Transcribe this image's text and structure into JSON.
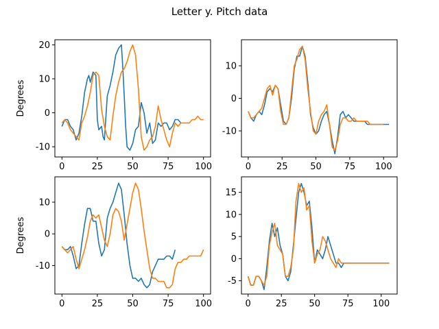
{
  "figure": {
    "title": "Letter y. Pitch data",
    "colors": {
      "series1": "#1f77b4",
      "series2": "#ff7f0e",
      "frame": "#000000",
      "background": "#ffffff"
    }
  },
  "chart_data": [
    {
      "type": "line",
      "ylabel": "Degrees",
      "xlim": [
        -5,
        105
      ],
      "ylim": [
        -13,
        21.5
      ],
      "xticks": [
        0,
        25,
        50,
        75,
        100
      ],
      "yticks": [
        -10,
        0,
        10,
        20
      ],
      "grid": false,
      "series": [
        {
          "x": [
            0,
            2,
            4,
            6,
            8,
            10,
            12,
            14,
            16,
            18,
            19,
            20,
            22,
            24,
            25,
            26,
            28,
            29,
            30,
            32,
            34,
            36,
            38,
            40,
            42,
            43,
            44,
            45,
            46,
            48,
            50,
            52,
            54,
            56,
            58,
            60,
            62,
            64,
            66,
            68,
            70,
            72,
            74,
            76,
            78,
            80,
            82,
            84
          ],
          "y": [
            -4,
            -2,
            -2,
            -4,
            -5,
            -8,
            -6,
            -1,
            6,
            10,
            11,
            9,
            12,
            11,
            -2,
            -5,
            -4,
            -7,
            -8,
            5,
            8,
            12,
            17,
            19,
            20,
            13,
            5,
            -4,
            -10,
            -11,
            -9,
            -5,
            -4,
            3,
            0,
            -6,
            -3,
            -9,
            -8,
            -3,
            -4,
            -3,
            -3,
            -5,
            -4,
            -2,
            -2,
            -3
          ]
        },
        {
          "x": [
            0,
            2,
            4,
            6,
            8,
            10,
            12,
            14,
            16,
            18,
            20,
            22,
            24,
            26,
            28,
            30,
            32,
            34,
            36,
            38,
            40,
            42,
            44,
            46,
            48,
            50,
            52,
            54,
            56,
            58,
            60,
            62,
            64,
            66,
            68,
            70,
            72,
            74,
            76,
            78,
            80,
            82,
            84,
            86,
            88,
            90,
            92,
            94,
            96,
            98,
            100
          ],
          "y": [
            -3,
            -2,
            -3,
            -5,
            -6,
            -7,
            -8,
            -3,
            -1,
            2,
            6,
            11,
            12,
            11,
            1,
            -4,
            -7,
            -8,
            -1,
            5,
            9,
            12,
            13,
            15,
            18,
            20,
            17,
            7,
            -7,
            -11,
            -10,
            -8,
            -7,
            -4,
            2,
            -2,
            -5,
            -8,
            -10,
            -6,
            -3,
            -4,
            -3,
            -3,
            -3,
            -3,
            -2,
            -2,
            -1,
            -2,
            -2
          ]
        }
      ]
    },
    {
      "type": "line",
      "xlim": [
        -5,
        110
      ],
      "ylim": [
        -18,
        18
      ],
      "xticks": [
        0,
        25,
        50,
        75,
        100
      ],
      "yticks": [
        -10,
        0,
        10
      ],
      "grid": false,
      "series": [
        {
          "x": [
            0,
            2,
            4,
            6,
            8,
            10,
            12,
            14,
            16,
            18,
            20,
            22,
            24,
            26,
            28,
            30,
            32,
            34,
            36,
            38,
            40,
            42,
            44,
            46,
            48,
            50,
            52,
            54,
            56,
            58,
            60,
            62,
            64,
            66,
            68,
            70,
            72,
            74,
            76,
            78,
            80,
            82,
            84,
            86,
            88,
            90,
            92,
            94,
            96,
            98,
            100,
            102,
            104
          ],
          "y": [
            -4,
            -6,
            -7,
            -5,
            -4,
            -5,
            -2,
            2,
            3,
            2,
            4,
            3,
            -2,
            -7,
            -8,
            -6,
            0,
            9,
            13,
            13,
            16,
            13,
            5,
            -5,
            -9,
            -11,
            -10,
            -7,
            -5,
            -4,
            -8,
            -13,
            -17,
            -12,
            -5,
            -4,
            -6,
            -5,
            -6,
            -7,
            -7,
            -7,
            -7,
            -7,
            -8,
            -8,
            -8,
            -8,
            -8,
            -8,
            -8,
            -8,
            -8
          ]
        },
        {
          "x": [
            0,
            2,
            4,
            6,
            8,
            10,
            12,
            14,
            16,
            18,
            20,
            22,
            24,
            26,
            28,
            30,
            32,
            34,
            36,
            38,
            40,
            42,
            44,
            46,
            48,
            50,
            52,
            54,
            56,
            58,
            60,
            62,
            64,
            66,
            68,
            70,
            72,
            74,
            76,
            78,
            80,
            82,
            84,
            86,
            88,
            90,
            92,
            94,
            96,
            98,
            100
          ],
          "y": [
            -4,
            -6,
            -6,
            -5,
            -4,
            -3,
            0,
            3,
            4,
            1,
            4,
            3,
            -4,
            -8,
            -8,
            -6,
            2,
            10,
            12,
            15,
            16,
            12,
            3,
            -4,
            -10,
            -11,
            -7,
            -5,
            -4,
            -2,
            -8,
            -15,
            -16,
            -13,
            -8,
            -6,
            -6,
            -7,
            -7,
            -6,
            -7,
            -7,
            -7,
            -7,
            -7,
            -8,
            -8,
            -8,
            -8,
            -8,
            -8
          ]
        }
      ]
    },
    {
      "type": "line",
      "ylabel": "Degrees",
      "xlim": [
        -5,
        105
      ],
      "ylim": [
        -19,
        18
      ],
      "xticks": [
        0,
        25,
        50,
        75,
        100
      ],
      "yticks": [
        -10,
        0,
        10
      ],
      "grid": false,
      "series": [
        {
          "x": [
            0,
            2,
            4,
            6,
            8,
            10,
            12,
            14,
            16,
            18,
            20,
            22,
            24,
            26,
            28,
            30,
            32,
            34,
            36,
            38,
            40,
            42,
            44,
            46,
            48,
            50,
            52,
            54,
            56,
            58,
            60,
            62,
            64,
            66,
            68,
            70,
            72,
            74,
            76,
            78,
            80
          ],
          "y": [
            -4,
            -5,
            -5,
            -4,
            -7,
            -11,
            -10,
            -3,
            3,
            8,
            8,
            4,
            4,
            -3,
            -7,
            -5,
            5,
            8,
            10,
            13,
            16,
            14,
            6,
            -3,
            -10,
            -14,
            -14,
            -15,
            -14,
            -16,
            -17,
            -16,
            -12,
            -10,
            -8,
            -8,
            -8,
            -7,
            -7,
            -8,
            -5
          ]
        },
        {
          "x": [
            0,
            2,
            4,
            6,
            8,
            10,
            12,
            14,
            16,
            18,
            20,
            22,
            24,
            26,
            28,
            30,
            32,
            34,
            36,
            38,
            40,
            42,
            44,
            46,
            48,
            50,
            52,
            54,
            56,
            58,
            60,
            62,
            64,
            66,
            68,
            70,
            72,
            74,
            76,
            78,
            80,
            82,
            84,
            86,
            88,
            90,
            92,
            94,
            96,
            98,
            100
          ],
          "y": [
            -4,
            -5,
            -6,
            -5,
            -4,
            -8,
            -11,
            -8,
            -5,
            -1,
            4,
            6,
            5,
            6,
            2,
            -2,
            -4,
            0,
            6,
            8,
            7,
            4,
            -2,
            3,
            8,
            13,
            16,
            14,
            8,
            1,
            -5,
            -11,
            -14,
            -14,
            -15,
            -15,
            -15,
            -17,
            -17,
            -16,
            -11,
            -9,
            -9,
            -8,
            -8,
            -7,
            -7,
            -7,
            -7,
            -7,
            -5
          ]
        }
      ]
    },
    {
      "type": "line",
      "xlim": [
        -5,
        112
      ],
      "ylim": [
        -8,
        18.5
      ],
      "xticks": [
        0,
        25,
        50,
        75,
        100
      ],
      "yticks": [
        -5,
        0,
        5,
        10,
        15
      ],
      "grid": false,
      "series": [
        {
          "x": [
            0,
            2,
            4,
            6,
            8,
            10,
            12,
            14,
            16,
            18,
            20,
            22,
            24,
            26,
            28,
            30,
            32,
            34,
            36,
            38,
            40,
            42,
            44,
            46,
            48,
            50,
            52,
            54,
            56,
            58,
            60,
            62,
            64,
            66,
            68,
            70,
            72,
            74,
            76,
            78,
            80,
            82,
            84,
            86,
            88,
            90,
            92,
            94,
            96,
            98,
            100,
            102,
            104,
            106
          ],
          "y": [
            -4,
            -6,
            -6,
            -4,
            -4,
            -5,
            -7,
            -2,
            4,
            8,
            5,
            7,
            3,
            1,
            -4,
            -5,
            -3,
            3,
            9,
            15,
            17,
            15,
            12,
            13,
            7,
            -1,
            2,
            1,
            0,
            2,
            5,
            3,
            1,
            -1,
            -1,
            -2,
            -1,
            -1,
            -1,
            -1,
            -1,
            -1,
            -1,
            -1,
            -1,
            -1,
            -1,
            -1,
            -1,
            -1,
            -1,
            -1,
            -1,
            -1
          ]
        },
        {
          "x": [
            0,
            2,
            4,
            6,
            8,
            10,
            12,
            14,
            16,
            18,
            20,
            22,
            24,
            26,
            28,
            30,
            32,
            34,
            36,
            38,
            40,
            42,
            44,
            46,
            48,
            50,
            52,
            54,
            56,
            58,
            60,
            62,
            64,
            66,
            68,
            70,
            72,
            74,
            76,
            78,
            80,
            82,
            84,
            86,
            88,
            90,
            92,
            94,
            96,
            98,
            100,
            102,
            104,
            106
          ],
          "y": [
            -4,
            -6,
            -6,
            -4,
            -4,
            -5,
            -6,
            -4,
            3,
            6,
            8,
            3,
            2,
            1,
            -4,
            -4,
            -2,
            2,
            13,
            17,
            15,
            16,
            11,
            12,
            4,
            -1,
            1,
            2,
            5,
            4,
            2,
            0,
            -1,
            -2,
            0,
            -1,
            -1,
            -1,
            -1,
            -1,
            -1,
            -1,
            -1,
            -1,
            -1,
            -1,
            -1,
            -1,
            -1,
            -1,
            -1,
            -1,
            -1,
            -1
          ]
        }
      ]
    }
  ]
}
